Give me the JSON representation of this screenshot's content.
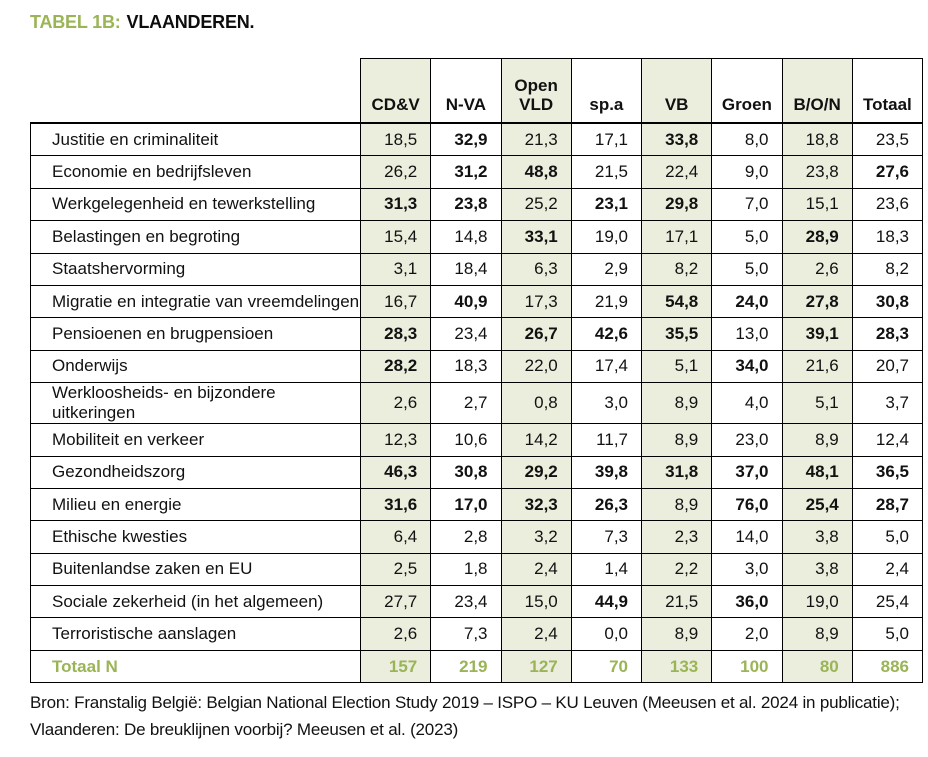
{
  "title": {
    "prefix": "TABEL 1B:",
    "text": "VLAANDEREN."
  },
  "colors": {
    "accent_green": "#9ab456",
    "shaded_cell": "#ebeedd",
    "border": "#000000"
  },
  "table": {
    "columns": [
      "CD&V",
      "N-VA",
      "Open VLD",
      "sp.a",
      "VB",
      "Groen",
      "B/O/N",
      "Totaal"
    ],
    "shaded": [
      1,
      0,
      1,
      0,
      1,
      0,
      1,
      0
    ],
    "rows": [
      {
        "label": "Justitie en criminaliteit",
        "values": [
          "18,5",
          "32,9",
          "21,3",
          "17,1",
          "33,8",
          "8,0",
          "18,8",
          "23,5"
        ],
        "bold": [
          0,
          1,
          0,
          0,
          1,
          0,
          0,
          0
        ]
      },
      {
        "label": "Economie en bedrijfsleven",
        "values": [
          "26,2",
          "31,2",
          "48,8",
          "21,5",
          "22,4",
          "9,0",
          "23,8",
          "27,6"
        ],
        "bold": [
          0,
          1,
          1,
          0,
          0,
          0,
          0,
          1
        ]
      },
      {
        "label": "Werkgelegenheid en tewerkstelling",
        "values": [
          "31,3",
          "23,8",
          "25,2",
          "23,1",
          "29,8",
          "7,0",
          "15,1",
          "23,6"
        ],
        "bold": [
          1,
          1,
          0,
          1,
          1,
          0,
          0,
          0
        ]
      },
      {
        "label": "Belastingen en begroting",
        "values": [
          "15,4",
          "14,8",
          "33,1",
          "19,0",
          "17,1",
          "5,0",
          "28,9",
          "18,3"
        ],
        "bold": [
          0,
          0,
          1,
          0,
          0,
          0,
          1,
          0
        ]
      },
      {
        "label": "Staatshervorming",
        "values": [
          "3,1",
          "18,4",
          "6,3",
          "2,9",
          "8,2",
          "5,0",
          "2,6",
          "8,2"
        ],
        "bold": [
          0,
          0,
          0,
          0,
          0,
          0,
          0,
          0
        ]
      },
      {
        "label": "Migratie en integratie van vreemdelingen",
        "values": [
          "16,7",
          "40,9",
          "17,3",
          "21,9",
          "54,8",
          "24,0",
          "27,8",
          "30,8"
        ],
        "bold": [
          0,
          1,
          0,
          0,
          1,
          1,
          1,
          1
        ]
      },
      {
        "label": "Pensioenen en brugpensioen",
        "values": [
          "28,3",
          "23,4",
          "26,7",
          "42,6",
          "35,5",
          "13,0",
          "39,1",
          "28,3"
        ],
        "bold": [
          1,
          0,
          1,
          1,
          1,
          0,
          1,
          1
        ]
      },
      {
        "label": "Onderwijs",
        "values": [
          "28,2",
          "18,3",
          "22,0",
          "17,4",
          "5,1",
          "34,0",
          "21,6",
          "20,7"
        ],
        "bold": [
          1,
          0,
          0,
          0,
          0,
          1,
          0,
          0
        ]
      },
      {
        "label": "Werkloosheids- en bijzondere uitkeringen",
        "values": [
          "2,6",
          "2,7",
          "0,8",
          "3,0",
          "8,9",
          "4,0",
          "5,1",
          "3,7"
        ],
        "bold": [
          0,
          0,
          0,
          0,
          0,
          0,
          0,
          0
        ]
      },
      {
        "label": "Mobiliteit en verkeer",
        "values": [
          "12,3",
          "10,6",
          "14,2",
          "11,7",
          "8,9",
          "23,0",
          "8,9",
          "12,4"
        ],
        "bold": [
          0,
          0,
          0,
          0,
          0,
          0,
          0,
          0
        ]
      },
      {
        "label": "Gezondheidszorg",
        "values": [
          "46,3",
          "30,8",
          "29,2",
          "39,8",
          "31,8",
          "37,0",
          "48,1",
          "36,5"
        ],
        "bold": [
          1,
          1,
          1,
          1,
          1,
          1,
          1,
          1
        ]
      },
      {
        "label": "Milieu en energie",
        "values": [
          "31,6",
          "17,0",
          "32,3",
          "26,3",
          "8,9",
          "76,0",
          "25,4",
          "28,7"
        ],
        "bold": [
          1,
          1,
          1,
          1,
          0,
          1,
          1,
          1
        ]
      },
      {
        "label": "Ethische kwesties",
        "values": [
          "6,4",
          "2,8",
          "3,2",
          "7,3",
          "2,3",
          "14,0",
          "3,8",
          "5,0"
        ],
        "bold": [
          0,
          0,
          0,
          0,
          0,
          0,
          0,
          0
        ]
      },
      {
        "label": "Buitenlandse zaken en EU",
        "values": [
          "2,5",
          "1,8",
          "2,4",
          "1,4",
          "2,2",
          "3,0",
          "3,8",
          "2,4"
        ],
        "bold": [
          0,
          0,
          0,
          0,
          0,
          0,
          0,
          0
        ]
      },
      {
        "label": "Sociale zekerheid (in het algemeen)",
        "values": [
          "27,7",
          "23,4",
          "15,0",
          "44,9",
          "21,5",
          "36,0",
          "19,0",
          "25,4"
        ],
        "bold": [
          0,
          0,
          0,
          1,
          0,
          1,
          0,
          0
        ]
      },
      {
        "label": "Terroristische aanslagen",
        "values": [
          "2,6",
          "7,3",
          "2,4",
          "0,0",
          "8,9",
          "2,0",
          "8,9",
          "5,0"
        ],
        "bold": [
          0,
          0,
          0,
          0,
          0,
          0,
          0,
          0
        ]
      }
    ],
    "totals": {
      "label": "Totaal N",
      "values": [
        "157",
        "219",
        "127",
        "70",
        "133",
        "100",
        "80",
        "886"
      ]
    }
  },
  "footer": {
    "line1": "Bron: Franstalig België: Belgian National Election Study 2019 – ISPO – KU Leuven (Meeusen et al. 2024 in publicatie);",
    "line2": "Vlaanderen: De breuklijnen voorbij? Meeusen et al. (2023)"
  }
}
